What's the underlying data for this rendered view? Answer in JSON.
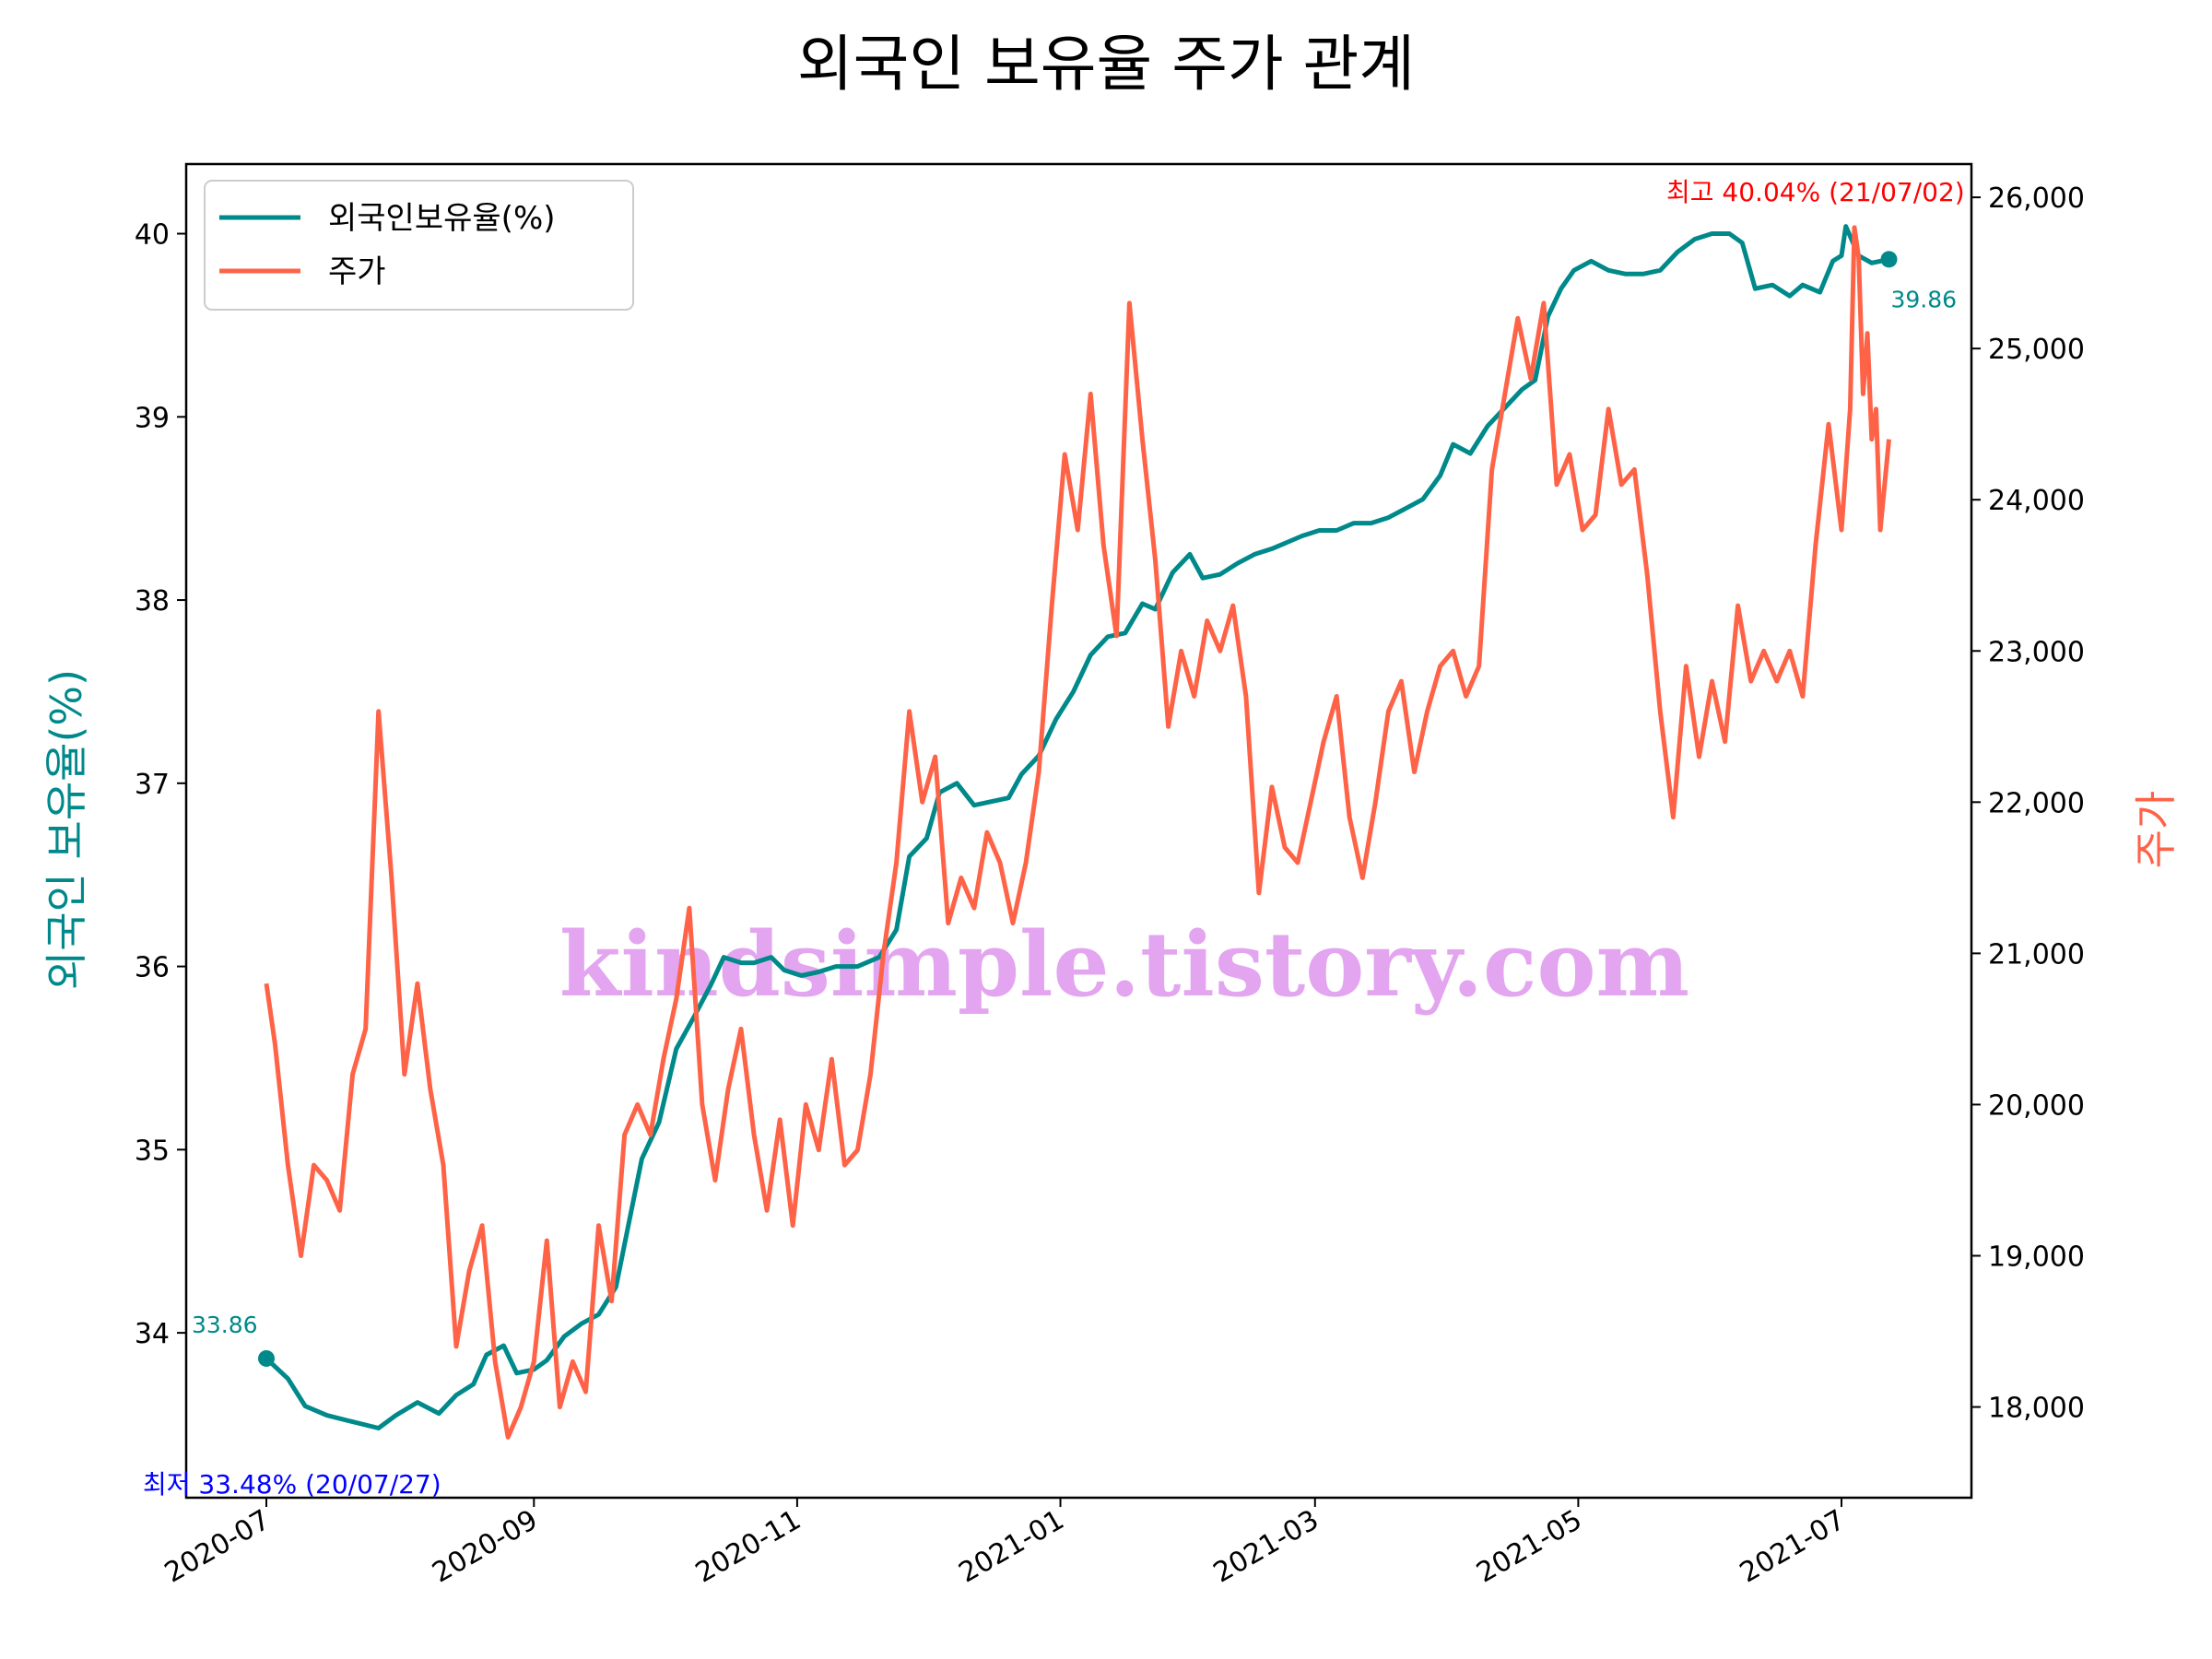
{
  "chart_data": {
    "type": "line",
    "title": "외국인 보유율 주가 관계",
    "ylabel_left": "외국인 보유율(%)",
    "ylabel_right": "주가",
    "ylim_left": [
      33.1,
      40.38
    ],
    "ylim_right": [
      17400,
      26220
    ],
    "yticks_left": [
      "34",
      "35",
      "36",
      "37",
      "38",
      "39",
      "40"
    ],
    "yticks_right": [
      "18,000",
      "19,000",
      "20,000",
      "21,000",
      "22,000",
      "23,000",
      "24,000",
      "25,000",
      "26,000"
    ],
    "xticks": [
      "2020-07",
      "2020-09",
      "2020-11",
      "2021-01",
      "2021-03",
      "2021-05",
      "2021-07"
    ],
    "legend_position": "upper-left",
    "watermark": "kindsimple.tistory.com",
    "colors": {
      "left": "#00898a",
      "right": "#ff6347",
      "max": "#ff0000",
      "min": "#0000ff"
    },
    "annotations": {
      "max": "최고 40.04% (21/07/02)",
      "min": "최저 33.48% (20/07/27)",
      "start": "33.86",
      "end": "39.86"
    },
    "series": [
      {
        "name": "외국인보유율(%)",
        "axis": "left",
        "points": [
          [
            "2020-07-01",
            33.86
          ],
          [
            "2020-07-06",
            33.75
          ],
          [
            "2020-07-10",
            33.6
          ],
          [
            "2020-07-15",
            33.55
          ],
          [
            "2020-07-20",
            33.52
          ],
          [
            "2020-07-27",
            33.48
          ],
          [
            "2020-07-31",
            33.55
          ],
          [
            "2020-08-05",
            33.62
          ],
          [
            "2020-08-10",
            33.56
          ],
          [
            "2020-08-14",
            33.66
          ],
          [
            "2020-08-18",
            33.72
          ],
          [
            "2020-08-21",
            33.88
          ],
          [
            "2020-08-25",
            33.93
          ],
          [
            "2020-08-28",
            33.78
          ],
          [
            "2020-09-01",
            33.8
          ],
          [
            "2020-09-04",
            33.85
          ],
          [
            "2020-09-08",
            33.98
          ],
          [
            "2020-09-12",
            34.05
          ],
          [
            "2020-09-16",
            34.1
          ],
          [
            "2020-09-20",
            34.25
          ],
          [
            "2020-09-23",
            34.6
          ],
          [
            "2020-09-26",
            34.95
          ],
          [
            "2020-09-30",
            35.15
          ],
          [
            "2020-10-04",
            35.55
          ],
          [
            "2020-10-08",
            35.72
          ],
          [
            "2020-10-12",
            35.9
          ],
          [
            "2020-10-15",
            36.05
          ],
          [
            "2020-10-19",
            36.02
          ],
          [
            "2020-10-22",
            36.02
          ],
          [
            "2020-10-26",
            36.05
          ],
          [
            "2020-10-29",
            35.98
          ],
          [
            "2020-11-02",
            35.95
          ],
          [
            "2020-11-06",
            35.97
          ],
          [
            "2020-11-10",
            36.0
          ],
          [
            "2020-11-15",
            36.0
          ],
          [
            "2020-11-20",
            36.05
          ],
          [
            "2020-11-24",
            36.2
          ],
          [
            "2020-11-27",
            36.6
          ],
          [
            "2020-12-01",
            36.7
          ],
          [
            "2020-12-04",
            36.95
          ],
          [
            "2020-12-08",
            37.0
          ],
          [
            "2020-12-12",
            36.88
          ],
          [
            "2020-12-16",
            36.9
          ],
          [
            "2020-12-20",
            36.92
          ],
          [
            "2020-12-23",
            37.05
          ],
          [
            "2020-12-27",
            37.15
          ],
          [
            "2020-12-31",
            37.35
          ],
          [
            "2021-01-04",
            37.5
          ],
          [
            "2021-01-08",
            37.7
          ],
          [
            "2021-01-12",
            37.8
          ],
          [
            "2021-01-16",
            37.82
          ],
          [
            "2021-01-20",
            37.98
          ],
          [
            "2021-01-23",
            37.95
          ],
          [
            "2021-01-27",
            38.15
          ],
          [
            "2021-01-31",
            38.25
          ],
          [
            "2021-02-03",
            38.12
          ],
          [
            "2021-02-07",
            38.14
          ],
          [
            "2021-02-11",
            38.2
          ],
          [
            "2021-02-15",
            38.25
          ],
          [
            "2021-02-19",
            38.28
          ],
          [
            "2021-02-23",
            38.32
          ],
          [
            "2021-02-26",
            38.35
          ],
          [
            "2021-03-02",
            38.38
          ],
          [
            "2021-03-06",
            38.38
          ],
          [
            "2021-03-10",
            38.42
          ],
          [
            "2021-03-14",
            38.42
          ],
          [
            "2021-03-18",
            38.45
          ],
          [
            "2021-03-22",
            38.5
          ],
          [
            "2021-03-26",
            38.55
          ],
          [
            "2021-03-30",
            38.68
          ],
          [
            "2021-04-02",
            38.85
          ],
          [
            "2021-04-06",
            38.8
          ],
          [
            "2021-04-10",
            38.95
          ],
          [
            "2021-04-14",
            39.05
          ],
          [
            "2021-04-18",
            39.15
          ],
          [
            "2021-04-21",
            39.2
          ],
          [
            "2021-04-24",
            39.55
          ],
          [
            "2021-04-27",
            39.7
          ],
          [
            "2021-04-30",
            39.8
          ],
          [
            "2021-05-04",
            39.85
          ],
          [
            "2021-05-08",
            39.8
          ],
          [
            "2021-05-12",
            39.78
          ],
          [
            "2021-05-16",
            39.78
          ],
          [
            "2021-05-20",
            39.8
          ],
          [
            "2021-05-24",
            39.9
          ],
          [
            "2021-05-28",
            39.97
          ],
          [
            "2021-06-01",
            40.0
          ],
          [
            "2021-06-05",
            40.0
          ],
          [
            "2021-06-08",
            39.95
          ],
          [
            "2021-06-11",
            39.7
          ],
          [
            "2021-06-15",
            39.72
          ],
          [
            "2021-06-19",
            39.66
          ],
          [
            "2021-06-22",
            39.72
          ],
          [
            "2021-06-26",
            39.68
          ],
          [
            "2021-06-29",
            39.85
          ],
          [
            "2021-07-01",
            39.88
          ],
          [
            "2021-07-02",
            40.04
          ],
          [
            "2021-07-05",
            39.88
          ],
          [
            "2021-07-08",
            39.84
          ],
          [
            "2021-07-12",
            39.86
          ]
        ]
      },
      {
        "name": "주가",
        "axis": "right",
        "points": [
          [
            "2020-07-01",
            20800
          ],
          [
            "2020-07-03",
            20400
          ],
          [
            "2020-07-06",
            19600
          ],
          [
            "2020-07-09",
            19000
          ],
          [
            "2020-07-12",
            19600
          ],
          [
            "2020-07-15",
            19500
          ],
          [
            "2020-07-18",
            19300
          ],
          [
            "2020-07-21",
            20200
          ],
          [
            "2020-07-24",
            20500
          ],
          [
            "2020-07-27",
            22600
          ],
          [
            "2020-07-30",
            21500
          ],
          [
            "2020-08-02",
            20200
          ],
          [
            "2020-08-05",
            20800
          ],
          [
            "2020-08-08",
            20100
          ],
          [
            "2020-08-11",
            19600
          ],
          [
            "2020-08-14",
            18400
          ],
          [
            "2020-08-17",
            18900
          ],
          [
            "2020-08-20",
            19200
          ],
          [
            "2020-08-23",
            18300
          ],
          [
            "2020-08-26",
            17800
          ],
          [
            "2020-08-29",
            18000
          ],
          [
            "2020-09-01",
            18300
          ],
          [
            "2020-09-04",
            19100
          ],
          [
            "2020-09-07",
            18000
          ],
          [
            "2020-09-10",
            18300
          ],
          [
            "2020-09-13",
            18100
          ],
          [
            "2020-09-16",
            19200
          ],
          [
            "2020-09-19",
            18700
          ],
          [
            "2020-09-22",
            19800
          ],
          [
            "2020-09-25",
            20000
          ],
          [
            "2020-09-28",
            19800
          ],
          [
            "2020-10-01",
            20300
          ],
          [
            "2020-10-04",
            20700
          ],
          [
            "2020-10-07",
            21300
          ],
          [
            "2020-10-10",
            20000
          ],
          [
            "2020-10-13",
            19500
          ],
          [
            "2020-10-16",
            20100
          ],
          [
            "2020-10-19",
            20500
          ],
          [
            "2020-10-22",
            19800
          ],
          [
            "2020-10-25",
            19300
          ],
          [
            "2020-10-28",
            19900
          ],
          [
            "2020-10-31",
            19200
          ],
          [
            "2020-11-03",
            20000
          ],
          [
            "2020-11-06",
            19700
          ],
          [
            "2020-11-09",
            20300
          ],
          [
            "2020-11-12",
            19600
          ],
          [
            "2020-11-15",
            19700
          ],
          [
            "2020-11-18",
            20200
          ],
          [
            "2020-11-21",
            21000
          ],
          [
            "2020-11-24",
            21600
          ],
          [
            "2020-11-27",
            22600
          ],
          [
            "2020-11-30",
            22000
          ],
          [
            "2020-12-03",
            22300
          ],
          [
            "2020-12-06",
            21200
          ],
          [
            "2020-12-09",
            21500
          ],
          [
            "2020-12-12",
            21300
          ],
          [
            "2020-12-15",
            21800
          ],
          [
            "2020-12-18",
            21600
          ],
          [
            "2020-12-21",
            21200
          ],
          [
            "2020-12-24",
            21600
          ],
          [
            "2020-12-27",
            22200
          ],
          [
            "2020-12-30",
            23300
          ],
          [
            "2021-01-02",
            24300
          ],
          [
            "2021-01-05",
            23800
          ],
          [
            "2021-01-08",
            24700
          ],
          [
            "2021-01-11",
            23700
          ],
          [
            "2021-01-14",
            23100
          ],
          [
            "2021-01-17",
            25300
          ],
          [
            "2021-01-20",
            24400
          ],
          [
            "2021-01-23",
            23600
          ],
          [
            "2021-01-26",
            22500
          ],
          [
            "2021-01-29",
            23000
          ],
          [
            "2021-02-01",
            22700
          ],
          [
            "2021-02-04",
            23200
          ],
          [
            "2021-02-07",
            23000
          ],
          [
            "2021-02-10",
            23300
          ],
          [
            "2021-02-13",
            22700
          ],
          [
            "2021-02-16",
            21400
          ],
          [
            "2021-02-19",
            22100
          ],
          [
            "2021-02-22",
            21700
          ],
          [
            "2021-02-25",
            21600
          ],
          [
            "2021-02-28",
            22000
          ],
          [
            "2021-03-03",
            22400
          ],
          [
            "2021-03-06",
            22700
          ],
          [
            "2021-03-09",
            21900
          ],
          [
            "2021-03-12",
            21500
          ],
          [
            "2021-03-15",
            22000
          ],
          [
            "2021-03-18",
            22600
          ],
          [
            "2021-03-21",
            22800
          ],
          [
            "2021-03-24",
            22200
          ],
          [
            "2021-03-27",
            22600
          ],
          [
            "2021-03-30",
            22900
          ],
          [
            "2021-04-02",
            23000
          ],
          [
            "2021-04-05",
            22700
          ],
          [
            "2021-04-08",
            22900
          ],
          [
            "2021-04-11",
            24200
          ],
          [
            "2021-04-14",
            24700
          ],
          [
            "2021-04-17",
            25200
          ],
          [
            "2021-04-20",
            24800
          ],
          [
            "2021-04-23",
            25300
          ],
          [
            "2021-04-26",
            24100
          ],
          [
            "2021-04-29",
            24300
          ],
          [
            "2021-05-02",
            23800
          ],
          [
            "2021-05-05",
            23900
          ],
          [
            "2021-05-08",
            24600
          ],
          [
            "2021-05-11",
            24100
          ],
          [
            "2021-05-14",
            24200
          ],
          [
            "2021-05-17",
            23500
          ],
          [
            "2021-05-20",
            22600
          ],
          [
            "2021-05-23",
            21900
          ],
          [
            "2021-05-26",
            22900
          ],
          [
            "2021-05-29",
            22300
          ],
          [
            "2021-06-01",
            22800
          ],
          [
            "2021-06-04",
            22400
          ],
          [
            "2021-06-07",
            23300
          ],
          [
            "2021-06-10",
            22800
          ],
          [
            "2021-06-13",
            23000
          ],
          [
            "2021-06-16",
            22800
          ],
          [
            "2021-06-19",
            23000
          ],
          [
            "2021-06-22",
            22700
          ],
          [
            "2021-06-25",
            23700
          ],
          [
            "2021-06-28",
            24500
          ],
          [
            "2021-07-01",
            23800
          ],
          [
            "2021-07-03",
            24600
          ],
          [
            "2021-07-04",
            25800
          ],
          [
            "2021-07-05",
            25600
          ],
          [
            "2021-07-06",
            24700
          ],
          [
            "2021-07-07",
            25100
          ],
          [
            "2021-07-08",
            24400
          ],
          [
            "2021-07-09",
            24600
          ],
          [
            "2021-07-10",
            23800
          ],
          [
            "2021-07-12",
            24400
          ]
        ]
      }
    ]
  }
}
